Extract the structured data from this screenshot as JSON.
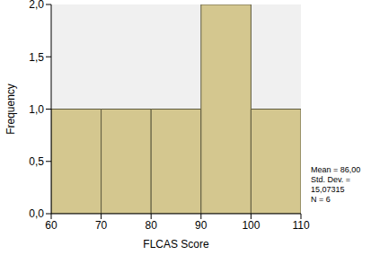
{
  "chart_data": {
    "type": "histogram",
    "x_label": "FLCAS Score",
    "y_label": "Frequency",
    "bins": [
      60,
      70,
      80,
      90,
      100,
      110
    ],
    "counts": [
      1,
      1,
      1,
      2,
      1
    ],
    "color": "#d4c78f",
    "xlim": [
      60,
      110
    ],
    "xticks": [
      60,
      70,
      80,
      90,
      100,
      110
    ],
    "ylim": [
      0,
      2
    ],
    "yticks": [
      {
        "value": 0,
        "label": "0,0"
      },
      {
        "value": 0.5,
        "label": "0,5"
      },
      {
        "value": 1,
        "label": "1,0"
      },
      {
        "value": 1.5,
        "label": "1,5"
      },
      {
        "value": 2,
        "label": "2,0"
      }
    ],
    "grid": false,
    "annotations": [
      "Mean = 86,00",
      "Std. Dev. = 15,07315",
      "N = 6"
    ]
  }
}
